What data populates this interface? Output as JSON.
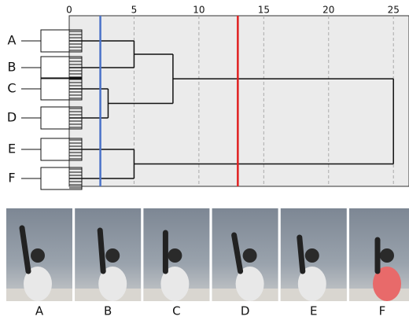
{
  "chart_data": {
    "type": "dendrogram",
    "leaves": [
      "A",
      "B",
      "C",
      "D",
      "E",
      "F"
    ],
    "merges": [
      {
        "children": [
          "A",
          "B"
        ],
        "height": 5
      },
      {
        "children": [
          "C",
          "D"
        ],
        "height": 3
      },
      {
        "children": [
          0,
          1
        ],
        "height": 8
      },
      {
        "children": [
          "E",
          "F"
        ],
        "height": 5
      },
      {
        "children": [
          2,
          3
        ],
        "height": 25
      }
    ],
    "cut_lines": [
      {
        "value": 2.4,
        "color": "#4a72c8"
      },
      {
        "value": 13,
        "color": "#e02020"
      }
    ],
    "xlim": [
      0,
      26.2
    ],
    "xticks": [
      0,
      5,
      10,
      15,
      20,
      25
    ],
    "grid": true,
    "line_color": "#111111"
  },
  "photos": [
    {
      "label": "A"
    },
    {
      "label": "B"
    },
    {
      "label": "C"
    },
    {
      "label": "D"
    },
    {
      "label": "E"
    },
    {
      "label": "F"
    }
  ]
}
